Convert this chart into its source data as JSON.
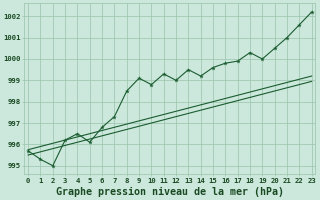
{
  "xlabel": "Graphe pression niveau de la mer (hPa)",
  "hours": [
    0,
    1,
    2,
    3,
    4,
    5,
    6,
    7,
    8,
    9,
    10,
    11,
    12,
    13,
    14,
    15,
    16,
    17,
    18,
    19,
    20,
    21,
    22,
    23
  ],
  "pressure": [
    995.7,
    995.3,
    995.0,
    996.2,
    996.5,
    996.1,
    996.8,
    997.3,
    998.5,
    999.1,
    998.8,
    999.3,
    999.0,
    999.5,
    999.2,
    999.6,
    999.8,
    999.9,
    1000.3,
    1000.0,
    1000.5,
    1001.0,
    1001.6,
    1002.2
  ],
  "trend_low": [
    995.5,
    995.65,
    995.8,
    995.95,
    996.1,
    996.25,
    996.4,
    996.55,
    996.7,
    996.85,
    997.0,
    997.15,
    997.3,
    997.45,
    997.6,
    997.75,
    997.9,
    998.05,
    998.2,
    998.35,
    998.5,
    998.65,
    998.8,
    998.95
  ],
  "trend_high": [
    995.75,
    995.9,
    996.05,
    996.2,
    996.35,
    996.5,
    996.65,
    996.8,
    996.95,
    997.1,
    997.25,
    997.4,
    997.55,
    997.7,
    997.85,
    998.0,
    998.15,
    998.3,
    998.45,
    998.6,
    998.75,
    998.9,
    999.05,
    999.2
  ],
  "ylim_min": 994.6,
  "ylim_max": 1002.6,
  "yticks": [
    995,
    996,
    997,
    998,
    999,
    1000,
    1001,
    1002
  ],
  "bg_color": "#cce8dc",
  "grid_color": "#99c4aa",
  "line_color": "#1a5c30",
  "text_color": "#1a4a22",
  "label_fontsize": 6.0,
  "tick_fontsize": 5.2,
  "xlabel_fontsize": 7.2
}
